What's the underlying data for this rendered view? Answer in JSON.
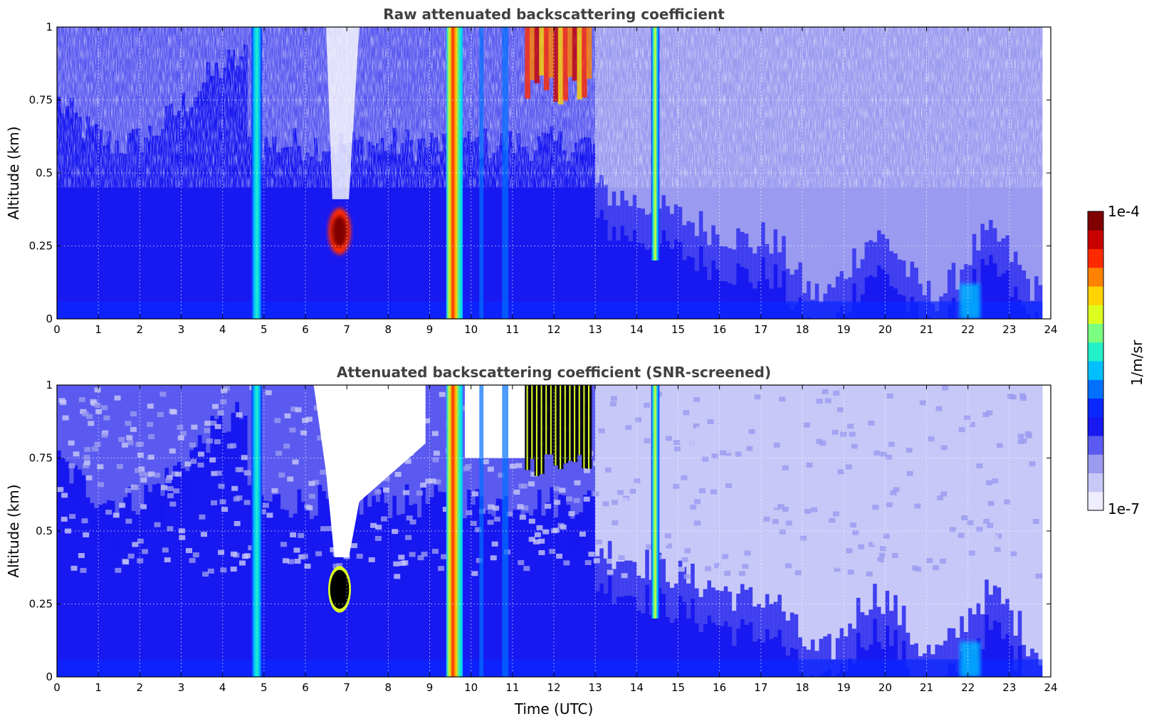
{
  "colormap": [
    "#eeeeff",
    "#c8c8f8",
    "#9a9af0",
    "#5a5af0",
    "#1818f0",
    "#0a28ff",
    "#0070ff",
    "#00bfff",
    "#22f0c8",
    "#7aff80",
    "#dcff20",
    "#ffd200",
    "#ff8200",
    "#ff2a00",
    "#c80000",
    "#800000"
  ],
  "chart_data": [
    {
      "type": "heatmap",
      "title": "Raw attenuated backscattering coefficient",
      "xlabel": "",
      "ylabel": "Altitude (km)",
      "xlim": [
        0,
        24
      ],
      "ylim": [
        0,
        1
      ],
      "xticks": [
        0,
        1,
        2,
        3,
        4,
        5,
        6,
        7,
        8,
        9,
        10,
        11,
        12,
        13,
        14,
        15,
        16,
        17,
        18,
        19,
        20,
        21,
        22,
        23,
        24
      ],
      "yticks": [
        0,
        0.25,
        0.5,
        0.75,
        1
      ],
      "grid": true,
      "features": [
        {
          "x": [
            4.7,
            4.95
          ],
          "y": [
            0,
            1
          ],
          "value": "1e-6"
        },
        {
          "x": [
            9.4,
            9.8
          ],
          "y": [
            0,
            1
          ],
          "value": "1e-5"
        },
        {
          "x": [
            6.55,
            7.1
          ],
          "y": [
            0.22,
            0.38
          ],
          "value": "5e-5"
        },
        {
          "x": [
            11.3,
            12.9
          ],
          "y": [
            0.72,
            1
          ],
          "value": "5e-5"
        },
        {
          "x": [
            14.35,
            14.55
          ],
          "y": [
            0.2,
            1
          ],
          "value": "3e-6"
        },
        {
          "x": [
            21.8,
            22.3
          ],
          "y": [
            0,
            0.12
          ],
          "value": "8e-7"
        }
      ]
    },
    {
      "type": "heatmap",
      "title": "Attenuated backscattering coefficient (SNR-screened)",
      "xlabel": "Time (UTC)",
      "ylabel": "Altitude (km)",
      "xlim": [
        0,
        24
      ],
      "ylim": [
        0,
        1
      ],
      "xticks": [
        0,
        1,
        2,
        3,
        4,
        5,
        6,
        7,
        8,
        9,
        10,
        11,
        12,
        13,
        14,
        15,
        16,
        17,
        18,
        19,
        20,
        21,
        22,
        23,
        24
      ],
      "yticks": [
        0,
        0.25,
        0.5,
        0.75,
        1
      ],
      "grid": true,
      "features": [
        {
          "x": [
            4.7,
            4.95
          ],
          "y": [
            0,
            1
          ],
          "value": "1e-6"
        },
        {
          "x": [
            9.4,
            9.8
          ],
          "y": [
            0,
            1
          ],
          "value": "1e-5"
        },
        {
          "x": [
            6.55,
            7.1
          ],
          "y": [
            0.22,
            0.38
          ],
          "value": "screened"
        },
        {
          "x": [
            11.3,
            12.9
          ],
          "y": [
            0.68,
            1
          ],
          "value": "screened"
        },
        {
          "x": [
            14.35,
            14.55
          ],
          "y": [
            0.2,
            1
          ],
          "value": "3e-6"
        },
        {
          "x": [
            21.8,
            22.3
          ],
          "y": [
            0,
            0.12
          ],
          "value": "8e-7"
        }
      ]
    }
  ],
  "colorbar": {
    "label": "1/m/sr",
    "max_label": "1e-4",
    "min_label": "1e-7",
    "scale": "log"
  }
}
